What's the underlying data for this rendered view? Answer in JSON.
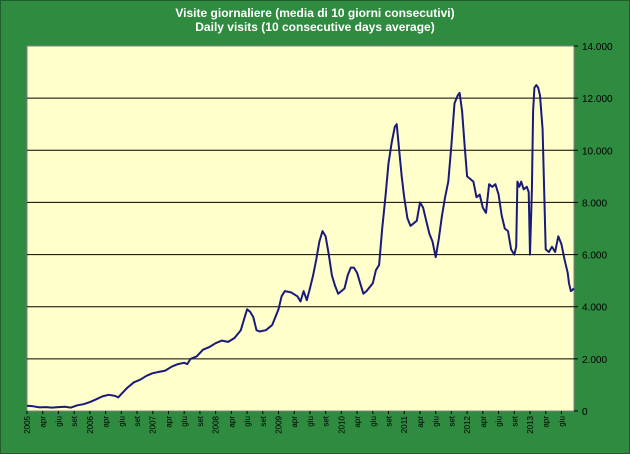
{
  "chart_data": {
    "type": "line",
    "title": "Visite giornaliere (media di 10 giorni consecutivi)",
    "subtitle": "Daily visits (10 consecutive days average)",
    "xlabel": "",
    "ylabel": "",
    "ylim": [
      0,
      14000
    ],
    "xlim": [
      2005.0,
      2013.7
    ],
    "y_axis_side": "right",
    "grid": "horizontal",
    "ytick_labels": [
      "0",
      "2.000",
      "4.000",
      "6.000",
      "8.000",
      "10.000",
      "12.000",
      "14.000"
    ],
    "ytick_values": [
      0,
      2000,
      4000,
      6000,
      8000,
      10000,
      12000,
      14000
    ],
    "xtick_labels": [
      {
        "x": 2005.0,
        "label": "2005"
      },
      {
        "x": 2005.25,
        "label": "apr"
      },
      {
        "x": 2005.5,
        "label": "giu"
      },
      {
        "x": 2005.75,
        "label": "set"
      },
      {
        "x": 2006.0,
        "label": "2006"
      },
      {
        "x": 2006.25,
        "label": "apr"
      },
      {
        "x": 2006.5,
        "label": "giu"
      },
      {
        "x": 2006.75,
        "label": "set"
      },
      {
        "x": 2007.0,
        "label": "2007"
      },
      {
        "x": 2007.25,
        "label": "apr"
      },
      {
        "x": 2007.5,
        "label": "giu"
      },
      {
        "x": 2007.75,
        "label": "set"
      },
      {
        "x": 2008.0,
        "label": "2008"
      },
      {
        "x": 2008.25,
        "label": "apr"
      },
      {
        "x": 2008.5,
        "label": "giu"
      },
      {
        "x": 2008.75,
        "label": "set"
      },
      {
        "x": 2009.0,
        "label": "2009"
      },
      {
        "x": 2009.25,
        "label": "apr"
      },
      {
        "x": 2009.5,
        "label": "giu"
      },
      {
        "x": 2009.75,
        "label": "set"
      },
      {
        "x": 2010.0,
        "label": "2010"
      },
      {
        "x": 2010.25,
        "label": "apr"
      },
      {
        "x": 2010.5,
        "label": "giu"
      },
      {
        "x": 2010.75,
        "label": "set"
      },
      {
        "x": 2011.0,
        "label": "2011"
      },
      {
        "x": 2011.25,
        "label": "apr"
      },
      {
        "x": 2011.5,
        "label": "giu"
      },
      {
        "x": 2011.75,
        "label": "set"
      },
      {
        "x": 2012.0,
        "label": "2012"
      },
      {
        "x": 2012.25,
        "label": "apr"
      },
      {
        "x": 2012.5,
        "label": "giu"
      },
      {
        "x": 2012.75,
        "label": "set"
      },
      {
        "x": 2013.0,
        "label": "2013"
      },
      {
        "x": 2013.25,
        "label": "apr"
      },
      {
        "x": 2013.5,
        "label": "giu"
      }
    ],
    "series": [
      {
        "name": "Daily visits",
        "color": "#1a1a7a",
        "points": [
          [
            2005.0,
            200
          ],
          [
            2005.1,
            180
          ],
          [
            2005.2,
            140
          ],
          [
            2005.3,
            150
          ],
          [
            2005.4,
            130
          ],
          [
            2005.5,
            150
          ],
          [
            2005.6,
            160
          ],
          [
            2005.7,
            130
          ],
          [
            2005.8,
            220
          ],
          [
            2005.9,
            260
          ],
          [
            2006.0,
            340
          ],
          [
            2006.1,
            450
          ],
          [
            2006.2,
            560
          ],
          [
            2006.3,
            620
          ],
          [
            2006.4,
            580
          ],
          [
            2006.45,
            520
          ],
          [
            2006.5,
            650
          ],
          [
            2006.6,
            900
          ],
          [
            2006.7,
            1100
          ],
          [
            2006.8,
            1200
          ],
          [
            2006.9,
            1350
          ],
          [
            2007.0,
            1450
          ],
          [
            2007.1,
            1500
          ],
          [
            2007.2,
            1550
          ],
          [
            2007.3,
            1700
          ],
          [
            2007.4,
            1800
          ],
          [
            2007.5,
            1850
          ],
          [
            2007.55,
            1800
          ],
          [
            2007.6,
            2000
          ],
          [
            2007.7,
            2100
          ],
          [
            2007.8,
            2350
          ],
          [
            2007.9,
            2450
          ],
          [
            2008.0,
            2600
          ],
          [
            2008.1,
            2700
          ],
          [
            2008.2,
            2650
          ],
          [
            2008.3,
            2800
          ],
          [
            2008.4,
            3100
          ],
          [
            2008.45,
            3500
          ],
          [
            2008.5,
            3900
          ],
          [
            2008.55,
            3800
          ],
          [
            2008.6,
            3600
          ],
          [
            2008.65,
            3100
          ],
          [
            2008.7,
            3050
          ],
          [
            2008.8,
            3100
          ],
          [
            2008.9,
            3300
          ],
          [
            2009.0,
            3900
          ],
          [
            2009.05,
            4400
          ],
          [
            2009.1,
            4600
          ],
          [
            2009.2,
            4550
          ],
          [
            2009.3,
            4400
          ],
          [
            2009.35,
            4200
          ],
          [
            2009.4,
            4600
          ],
          [
            2009.45,
            4250
          ],
          [
            2009.5,
            4700
          ],
          [
            2009.55,
            5200
          ],
          [
            2009.6,
            5800
          ],
          [
            2009.65,
            6500
          ],
          [
            2009.7,
            6900
          ],
          [
            2009.75,
            6700
          ],
          [
            2009.8,
            6000
          ],
          [
            2009.85,
            5200
          ],
          [
            2009.9,
            4800
          ],
          [
            2009.95,
            4500
          ],
          [
            2010.0,
            4600
          ],
          [
            2010.05,
            4700
          ],
          [
            2010.1,
            5200
          ],
          [
            2010.15,
            5500
          ],
          [
            2010.2,
            5500
          ],
          [
            2010.25,
            5300
          ],
          [
            2010.3,
            4900
          ],
          [
            2010.35,
            4500
          ],
          [
            2010.4,
            4600
          ],
          [
            2010.5,
            4900
          ],
          [
            2010.55,
            5400
          ],
          [
            2010.6,
            5600
          ],
          [
            2010.65,
            7000
          ],
          [
            2010.7,
            8200
          ],
          [
            2010.75,
            9500
          ],
          [
            2010.8,
            10300
          ],
          [
            2010.85,
            10900
          ],
          [
            2010.88,
            11000
          ],
          [
            2010.92,
            10000
          ],
          [
            2010.96,
            9000
          ],
          [
            2011.0,
            8200
          ],
          [
            2011.05,
            7400
          ],
          [
            2011.1,
            7100
          ],
          [
            2011.15,
            7200
          ],
          [
            2011.2,
            7300
          ],
          [
            2011.25,
            8000
          ],
          [
            2011.3,
            7800
          ],
          [
            2011.35,
            7300
          ],
          [
            2011.4,
            6800
          ],
          [
            2011.45,
            6500
          ],
          [
            2011.5,
            5900
          ],
          [
            2011.55,
            6600
          ],
          [
            2011.6,
            7500
          ],
          [
            2011.65,
            8200
          ],
          [
            2011.7,
            8800
          ],
          [
            2011.75,
            10200
          ],
          [
            2011.8,
            11800
          ],
          [
            2011.85,
            12100
          ],
          [
            2011.88,
            12200
          ],
          [
            2011.92,
            11500
          ],
          [
            2011.96,
            10200
          ],
          [
            2012.0,
            9000
          ],
          [
            2012.05,
            8900
          ],
          [
            2012.1,
            8800
          ],
          [
            2012.15,
            8200
          ],
          [
            2012.2,
            8300
          ],
          [
            2012.25,
            7800
          ],
          [
            2012.3,
            7600
          ],
          [
            2012.35,
            8700
          ],
          [
            2012.4,
            8600
          ],
          [
            2012.45,
            8700
          ],
          [
            2012.5,
            8300
          ],
          [
            2012.55,
            7500
          ],
          [
            2012.6,
            7000
          ],
          [
            2012.65,
            6900
          ],
          [
            2012.7,
            6200
          ],
          [
            2012.75,
            6000
          ],
          [
            2012.78,
            6300
          ],
          [
            2012.8,
            8800
          ],
          [
            2012.83,
            8600
          ],
          [
            2012.86,
            8800
          ],
          [
            2012.9,
            8500
          ],
          [
            2012.95,
            8600
          ],
          [
            2012.98,
            8400
          ],
          [
            2013.0,
            6000
          ],
          [
            2013.03,
            8500
          ],
          [
            2013.05,
            11500
          ],
          [
            2013.07,
            12400
          ],
          [
            2013.1,
            12500
          ],
          [
            2013.13,
            12400
          ],
          [
            2013.16,
            12100
          ],
          [
            2013.2,
            10800
          ],
          [
            2013.22,
            9000
          ],
          [
            2013.25,
            6200
          ],
          [
            2013.3,
            6100
          ],
          [
            2013.35,
            6300
          ],
          [
            2013.4,
            6100
          ],
          [
            2013.45,
            6700
          ],
          [
            2013.5,
            6400
          ],
          [
            2013.55,
            5800
          ],
          [
            2013.6,
            5300
          ],
          [
            2013.62,
            4900
          ],
          [
            2013.65,
            4600
          ],
          [
            2013.7,
            4700
          ]
        ]
      }
    ]
  }
}
